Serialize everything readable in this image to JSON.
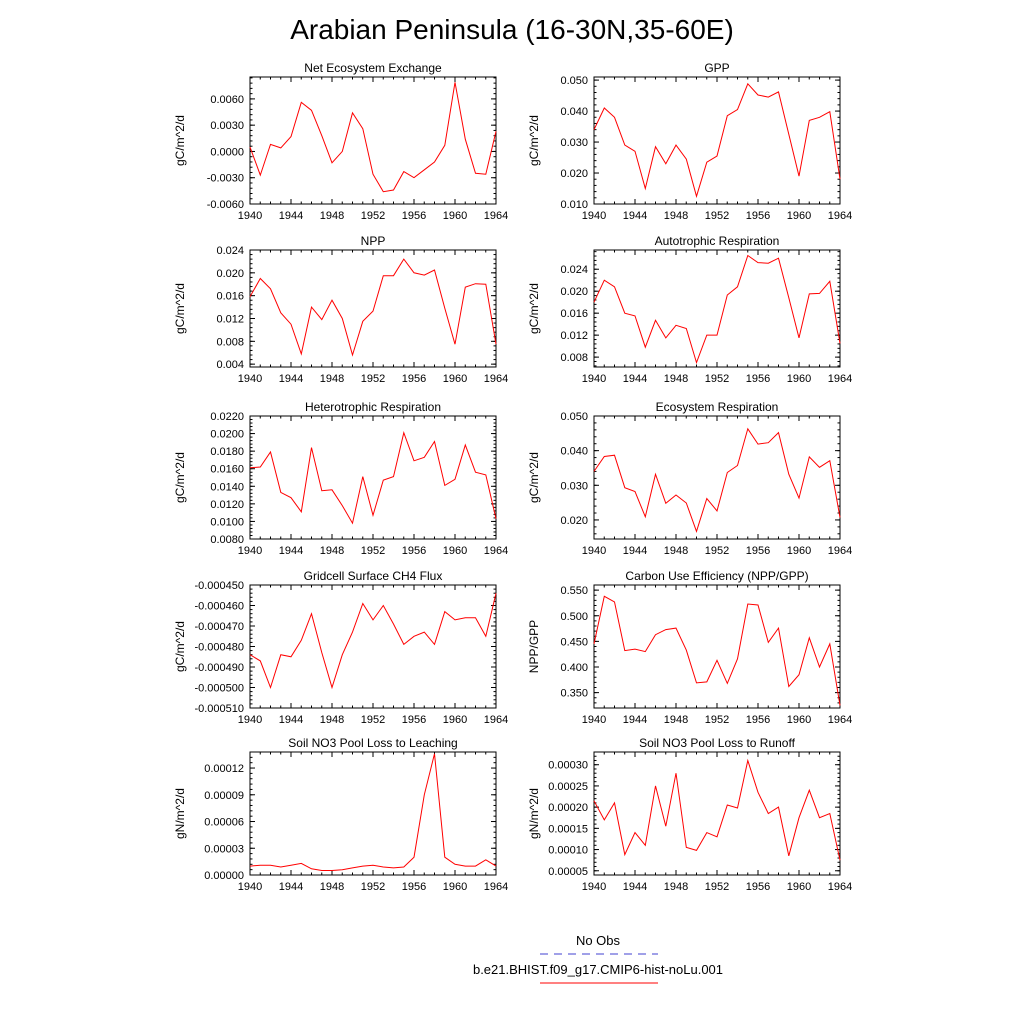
{
  "title": "Arabian Peninsula (16-30N,35-60E)",
  "legend": {
    "entries": [
      {
        "label": "No Obs",
        "color": "#4040d0",
        "dash": "dashed"
      },
      {
        "label": "b.e21.BHIST.f09_g17.CMIP6-hist-noLu.001",
        "color": "#ff0000",
        "dash": "solid"
      }
    ]
  },
  "line_color": "#ff0000",
  "chart_data": [
    {
      "type": "line",
      "title": "Net Ecosystem Exchange",
      "ylabel": "gC/m^2/d",
      "xlabel": "",
      "xlim": [
        1940,
        1964
      ],
      "ylim": [
        -0.006,
        0.0085
      ],
      "xticks": [
        1940,
        1944,
        1948,
        1952,
        1956,
        1960,
        1964
      ],
      "yticks": [
        "-0.0060",
        "-0.0030",
        "0.0000",
        "0.0030",
        "0.0060"
      ],
      "ytick_values": [
        -0.006,
        -0.003,
        0.0,
        0.003,
        0.006
      ],
      "x": [
        1940,
        1941,
        1942,
        1943,
        1944,
        1945,
        1946,
        1947,
        1948,
        1949,
        1950,
        1951,
        1952,
        1953,
        1954,
        1955,
        1956,
        1957,
        1958,
        1959,
        1960,
        1961,
        1962,
        1963,
        1964
      ],
      "series": [
        {
          "values": [
            0.0005,
            -0.0027,
            0.0008,
            0.0004,
            0.0017,
            0.0056,
            0.0047,
            0.0018,
            -0.0013,
            0.0,
            0.0044,
            0.0026,
            -0.0026,
            -0.0046,
            -0.0044,
            -0.0023,
            -0.003,
            -0.0021,
            -0.0012,
            0.0007,
            0.0079,
            0.0014,
            -0.0025,
            -0.0026,
            0.0023
          ]
        }
      ]
    },
    {
      "type": "line",
      "title": "GPP",
      "ylabel": "gC/m^2/d",
      "xlabel": "",
      "xlim": [
        1940,
        1964
      ],
      "ylim": [
        0.01,
        0.051
      ],
      "xticks": [
        1940,
        1944,
        1948,
        1952,
        1956,
        1960,
        1964
      ],
      "yticks": [
        "0.010",
        "0.020",
        "0.030",
        "0.040",
        "0.050"
      ],
      "ytick_values": [
        0.01,
        0.02,
        0.03,
        0.04,
        0.05
      ],
      "x": [
        1940,
        1941,
        1942,
        1943,
        1944,
        1945,
        1946,
        1947,
        1948,
        1949,
        1950,
        1951,
        1952,
        1953,
        1954,
        1955,
        1956,
        1957,
        1958,
        1959,
        1960,
        1961,
        1962,
        1963,
        1964
      ],
      "series": [
        {
          "values": [
            0.034,
            0.041,
            0.038,
            0.029,
            0.027,
            0.015,
            0.0285,
            0.023,
            0.029,
            0.0245,
            0.0125,
            0.0235,
            0.0255,
            0.0385,
            0.0405,
            0.0488,
            0.0452,
            0.0445,
            0.0462,
            0.0325,
            0.019,
            0.037,
            0.038,
            0.0398,
            0.018
          ]
        }
      ]
    },
    {
      "type": "line",
      "title": "NPP",
      "ylabel": "gC/m^2/d",
      "xlabel": "",
      "xlim": [
        1940,
        1964
      ],
      "ylim": [
        0.0035,
        0.024
      ],
      "xticks": [
        1940,
        1944,
        1948,
        1952,
        1956,
        1960,
        1964
      ],
      "yticks": [
        "0.004",
        "0.008",
        "0.012",
        "0.016",
        "0.020",
        "0.024"
      ],
      "ytick_values": [
        0.004,
        0.008,
        0.012,
        0.016,
        0.02,
        0.024
      ],
      "x": [
        1940,
        1941,
        1942,
        1943,
        1944,
        1945,
        1946,
        1947,
        1948,
        1949,
        1950,
        1951,
        1952,
        1953,
        1954,
        1955,
        1956,
        1957,
        1958,
        1959,
        1960,
        1961,
        1962,
        1963,
        1964
      ],
      "series": [
        {
          "values": [
            0.0158,
            0.019,
            0.0172,
            0.013,
            0.011,
            0.0058,
            0.014,
            0.0118,
            0.0152,
            0.012,
            0.0056,
            0.0115,
            0.0133,
            0.0195,
            0.0195,
            0.0224,
            0.02,
            0.0196,
            0.0205,
            0.0138,
            0.0075,
            0.0175,
            0.0181,
            0.018,
            0.0075
          ]
        }
      ]
    },
    {
      "type": "line",
      "title": "Autotrophic Respiration",
      "ylabel": "gC/m^2/d",
      "xlabel": "",
      "xlim": [
        1940,
        1964
      ],
      "ylim": [
        0.0062,
        0.0275
      ],
      "xticks": [
        1940,
        1944,
        1948,
        1952,
        1956,
        1960,
        1964
      ],
      "yticks": [
        "0.008",
        "0.012",
        "0.016",
        "0.020",
        "0.024"
      ],
      "ytick_values": [
        0.008,
        0.012,
        0.016,
        0.02,
        0.024
      ],
      "x": [
        1940,
        1941,
        1942,
        1943,
        1944,
        1945,
        1946,
        1947,
        1948,
        1949,
        1950,
        1951,
        1952,
        1953,
        1954,
        1955,
        1956,
        1957,
        1958,
        1959,
        1960,
        1961,
        1962,
        1963,
        1964
      ],
      "series": [
        {
          "values": [
            0.018,
            0.022,
            0.0208,
            0.016,
            0.0155,
            0.0098,
            0.0147,
            0.0115,
            0.0138,
            0.0132,
            0.007,
            0.012,
            0.012,
            0.0193,
            0.0208,
            0.0265,
            0.0252,
            0.0251,
            0.026,
            0.0188,
            0.0115,
            0.0195,
            0.0196,
            0.0218,
            0.0105
          ]
        }
      ]
    },
    {
      "type": "line",
      "title": "Heterotrophic Respiration",
      "ylabel": "gC/m^2/d",
      "xlabel": "",
      "xlim": [
        1940,
        1964
      ],
      "ylim": [
        0.008,
        0.022
      ],
      "xticks": [
        1940,
        1944,
        1948,
        1952,
        1956,
        1960,
        1964
      ],
      "yticks": [
        "0.0080",
        "0.0100",
        "0.0120",
        "0.0140",
        "0.0160",
        "0.0180",
        "0.0200",
        "0.0220"
      ],
      "ytick_values": [
        0.008,
        0.01,
        0.012,
        0.014,
        0.016,
        0.018,
        0.02,
        0.022
      ],
      "x": [
        1940,
        1941,
        1942,
        1943,
        1944,
        1945,
        1946,
        1947,
        1948,
        1949,
        1950,
        1951,
        1952,
        1953,
        1954,
        1955,
        1956,
        1957,
        1958,
        1959,
        1960,
        1961,
        1962,
        1963,
        1964
      ],
      "series": [
        {
          "values": [
            0.0161,
            0.0162,
            0.0179,
            0.0133,
            0.0127,
            0.0111,
            0.0184,
            0.0135,
            0.0136,
            0.0118,
            0.0098,
            0.0151,
            0.0107,
            0.0147,
            0.0151,
            0.0201,
            0.0169,
            0.0173,
            0.0191,
            0.0141,
            0.0148,
            0.0187,
            0.0156,
            0.0153,
            0.0103
          ]
        }
      ]
    },
    {
      "type": "line",
      "title": "Ecosystem Respiration",
      "ylabel": "gC/m^2/d",
      "xlabel": "",
      "xlim": [
        1940,
        1964
      ],
      "ylim": [
        0.0145,
        0.05
      ],
      "xticks": [
        1940,
        1944,
        1948,
        1952,
        1956,
        1960,
        1964
      ],
      "yticks": [
        "0.020",
        "0.030",
        "0.040",
        "0.050"
      ],
      "ytick_values": [
        0.02,
        0.03,
        0.04,
        0.05
      ],
      "x": [
        1940,
        1941,
        1942,
        1943,
        1944,
        1945,
        1946,
        1947,
        1948,
        1949,
        1950,
        1951,
        1952,
        1953,
        1954,
        1955,
        1956,
        1957,
        1958,
        1959,
        1960,
        1961,
        1962,
        1963,
        1964
      ],
      "series": [
        {
          "values": [
            0.034,
            0.0383,
            0.0387,
            0.0293,
            0.0282,
            0.0209,
            0.0332,
            0.0248,
            0.0272,
            0.0249,
            0.0167,
            0.0262,
            0.0226,
            0.0337,
            0.0357,
            0.0463,
            0.0419,
            0.0423,
            0.0452,
            0.0332,
            0.0263,
            0.0382,
            0.0352,
            0.0371,
            0.0207
          ]
        }
      ]
    },
    {
      "type": "line",
      "title": "Gridcell Surface CH4 Flux",
      "ylabel": "gC/m^2/d",
      "xlabel": "",
      "xlim": [
        1940,
        1964
      ],
      "ylim": [
        -0.00051,
        -0.00045
      ],
      "xticks": [
        1940,
        1944,
        1948,
        1952,
        1956,
        1960,
        1964
      ],
      "yticks": [
        "-0.000510",
        "-0.000500",
        "-0.000490",
        "-0.000480",
        "-0.000470",
        "-0.000460",
        "-0.000450"
      ],
      "ytick_values": [
        -0.00051,
        -0.0005,
        -0.00049,
        -0.00048,
        -0.00047,
        -0.00046,
        -0.00045
      ],
      "x": [
        1940,
        1941,
        1942,
        1943,
        1944,
        1945,
        1946,
        1947,
        1948,
        1949,
        1950,
        1951,
        1952,
        1953,
        1954,
        1955,
        1956,
        1957,
        1958,
        1959,
        1960,
        1961,
        1962,
        1963,
        1964
      ],
      "series": [
        {
          "values": [
            -0.000484,
            -0.000487,
            -0.0005,
            -0.000484,
            -0.000485,
            -0.000477,
            -0.000464,
            -0.000483,
            -0.0005,
            -0.000484,
            -0.000473,
            -0.000459,
            -0.000467,
            -0.00046,
            -0.000469,
            -0.000479,
            -0.000475,
            -0.000473,
            -0.000479,
            -0.000463,
            -0.000467,
            -0.000466,
            -0.000466,
            -0.000475,
            -0.000454
          ]
        }
      ]
    },
    {
      "type": "line",
      "title": "Carbon Use Efficiency (NPP/GPP)",
      "ylabel": "NPP/GPP",
      "xlabel": "",
      "xlim": [
        1940,
        1964
      ],
      "ylim": [
        0.32,
        0.56
      ],
      "xticks": [
        1940,
        1944,
        1948,
        1952,
        1956,
        1960,
        1964
      ],
      "yticks": [
        "0.350",
        "0.400",
        "0.450",
        "0.500",
        "0.550"
      ],
      "ytick_values": [
        0.35,
        0.4,
        0.45,
        0.5,
        0.55
      ],
      "x": [
        1940,
        1941,
        1942,
        1943,
        1944,
        1945,
        1946,
        1947,
        1948,
        1949,
        1950,
        1951,
        1952,
        1953,
        1954,
        1955,
        1956,
        1957,
        1958,
        1959,
        1960,
        1961,
        1962,
        1963,
        1964
      ],
      "series": [
        {
          "values": [
            0.445,
            0.538,
            0.527,
            0.432,
            0.435,
            0.43,
            0.463,
            0.473,
            0.476,
            0.433,
            0.369,
            0.371,
            0.413,
            0.368,
            0.416,
            0.523,
            0.521,
            0.448,
            0.476,
            0.362,
            0.385,
            0.457,
            0.4,
            0.445,
            0.325
          ]
        }
      ]
    },
    {
      "type": "line",
      "title": "Soil NO3 Pool Loss to Leaching",
      "ylabel": "gN/m^2/d",
      "xlabel": "",
      "xlim": [
        1940,
        1964
      ],
      "ylim": [
        0.0,
        0.000138
      ],
      "xticks": [
        1940,
        1944,
        1948,
        1952,
        1956,
        1960,
        1964
      ],
      "yticks": [
        "0.00000",
        "0.00003",
        "0.00006",
        "0.00009",
        "0.00012"
      ],
      "ytick_values": [
        0.0,
        3e-05,
        6e-05,
        9e-05,
        0.00012
      ],
      "x": [
        1940,
        1941,
        1942,
        1943,
        1944,
        1945,
        1946,
        1947,
        1948,
        1949,
        1950,
        1951,
        1952,
        1953,
        1954,
        1955,
        1956,
        1957,
        1958,
        1959,
        1960,
        1961,
        1962,
        1963,
        1964
      ],
      "series": [
        {
          "values": [
            1e-05,
            1.1e-05,
            1.1e-05,
            9e-06,
            1.1e-05,
            1.3e-05,
            7e-06,
            5e-06,
            5e-06,
            6e-06,
            8e-06,
            1e-05,
            1.1e-05,
            9e-06,
            8e-06,
            9e-06,
            2e-05,
            9e-05,
            0.000136,
            2e-05,
            1.2e-05,
            1e-05,
            1e-05,
            1.7e-05,
            1e-05
          ]
        }
      ]
    },
    {
      "type": "line",
      "title": "Soil NO3 Pool Loss to Runoff",
      "ylabel": "gN/m^2/d",
      "xlabel": "",
      "xlim": [
        1940,
        1964
      ],
      "ylim": [
        4e-05,
        0.00033
      ],
      "xticks": [
        1940,
        1944,
        1948,
        1952,
        1956,
        1960,
        1964
      ],
      "yticks": [
        "0.00005",
        "0.00010",
        "0.00015",
        "0.00020",
        "0.00025",
        "0.00030"
      ],
      "ytick_values": [
        5e-05,
        0.0001,
        0.00015,
        0.0002,
        0.00025,
        0.0003
      ],
      "x": [
        1940,
        1941,
        1942,
        1943,
        1944,
        1945,
        1946,
        1947,
        1948,
        1949,
        1950,
        1951,
        1952,
        1953,
        1954,
        1955,
        1956,
        1957,
        1958,
        1959,
        1960,
        1961,
        1962,
        1963,
        1964
      ],
      "series": [
        {
          "values": [
            0.000215,
            0.00017,
            0.00021,
            8.8e-05,
            0.00014,
            0.00011,
            0.00025,
            0.000155,
            0.00028,
            0.000105,
            9.8e-05,
            0.00014,
            0.00013,
            0.000205,
            0.000198,
            0.00031,
            0.000235,
            0.000185,
            0.0002,
            8.5e-05,
            0.000175,
            0.00024,
            0.000175,
            0.000185,
            7.5e-05
          ]
        }
      ]
    }
  ]
}
